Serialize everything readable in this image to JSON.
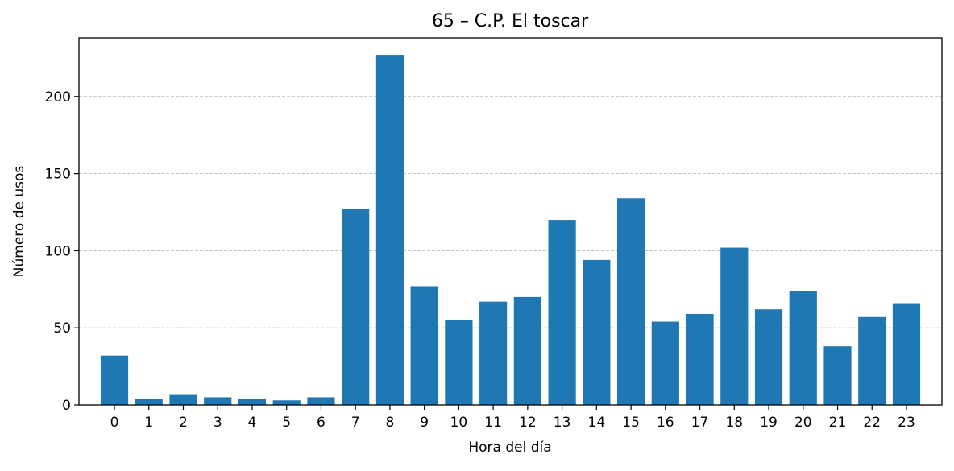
{
  "chart_data": {
    "type": "bar",
    "title": "65 – C.P. El toscar",
    "xlabel": "Hora del día",
    "ylabel": "Número de usos",
    "categories": [
      "0",
      "1",
      "2",
      "3",
      "4",
      "5",
      "6",
      "7",
      "8",
      "9",
      "10",
      "11",
      "12",
      "13",
      "14",
      "15",
      "16",
      "17",
      "18",
      "19",
      "20",
      "21",
      "22",
      "23"
    ],
    "values": [
      32,
      4,
      7,
      5,
      4,
      3,
      5,
      127,
      227,
      77,
      55,
      67,
      70,
      120,
      94,
      134,
      54,
      59,
      102,
      62,
      74,
      38,
      57,
      66
    ],
    "ylim": [
      0,
      238
    ],
    "yticks": [
      0,
      50,
      100,
      150,
      200
    ],
    "grid": "y-dashed",
    "colors": {
      "bar": "#1f77b4",
      "grid": "#b0b0b0"
    }
  }
}
